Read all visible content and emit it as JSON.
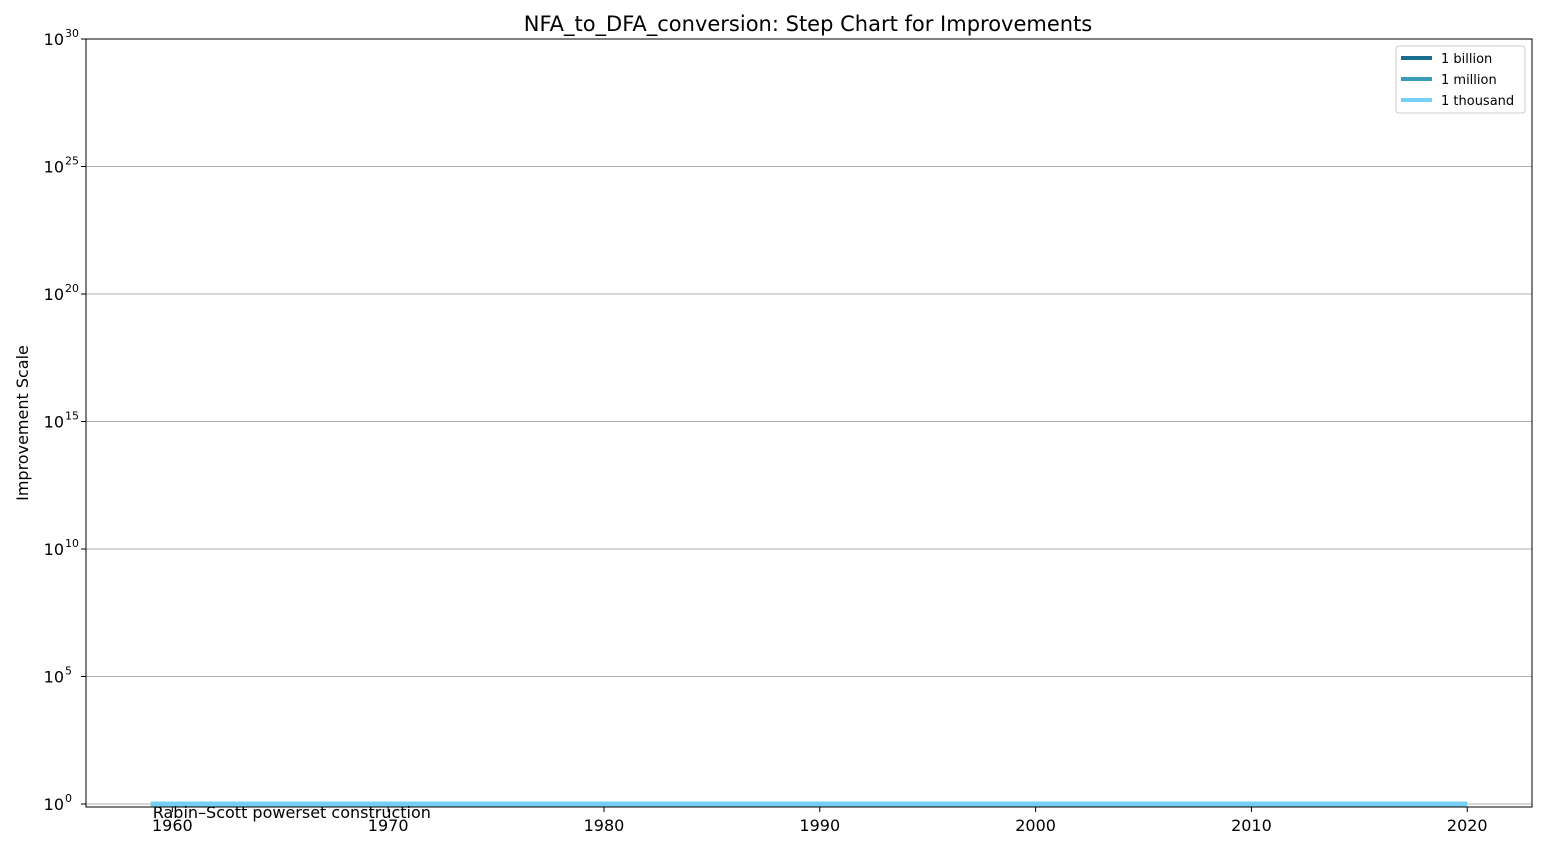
{
  "chart_data": {
    "type": "line",
    "title": "NFA_to_DFA_conversion: Step Chart for Improvements",
    "xlabel": "",
    "ylabel": "Improvement Scale",
    "xlim": [
      1956,
      2023
    ],
    "ylim": [
      1,
      1e+30
    ],
    "y_scale": "log",
    "x_ticks": [
      1960,
      1970,
      1980,
      1990,
      2000,
      2010,
      2020
    ],
    "y_ticks": [
      {
        "base": "10",
        "exp": "0"
      },
      {
        "base": "10",
        "exp": "5"
      },
      {
        "base": "10",
        "exp": "10"
      },
      {
        "base": "10",
        "exp": "15"
      },
      {
        "base": "10",
        "exp": "20"
      },
      {
        "base": "10",
        "exp": "25"
      },
      {
        "base": "10",
        "exp": "30"
      }
    ],
    "grid": "horizontal",
    "legend_position": "top-right",
    "legend": [
      {
        "label": "1 billion",
        "color": "#1a6e8e"
      },
      {
        "label": "1 million",
        "color": "#3a9bb9"
      },
      {
        "label": "1 thousand",
        "color": "#76d0f5"
      }
    ],
    "series": [
      {
        "name": "1 thousand",
        "color": "#76d0f5",
        "points": [
          {
            "x": 1959,
            "y": 1
          },
          {
            "x": 2020,
            "y": 1
          }
        ]
      }
    ],
    "annotations": [
      {
        "text": "Rabin–Scott powerset construction",
        "x": 1959,
        "y": 1
      }
    ]
  }
}
